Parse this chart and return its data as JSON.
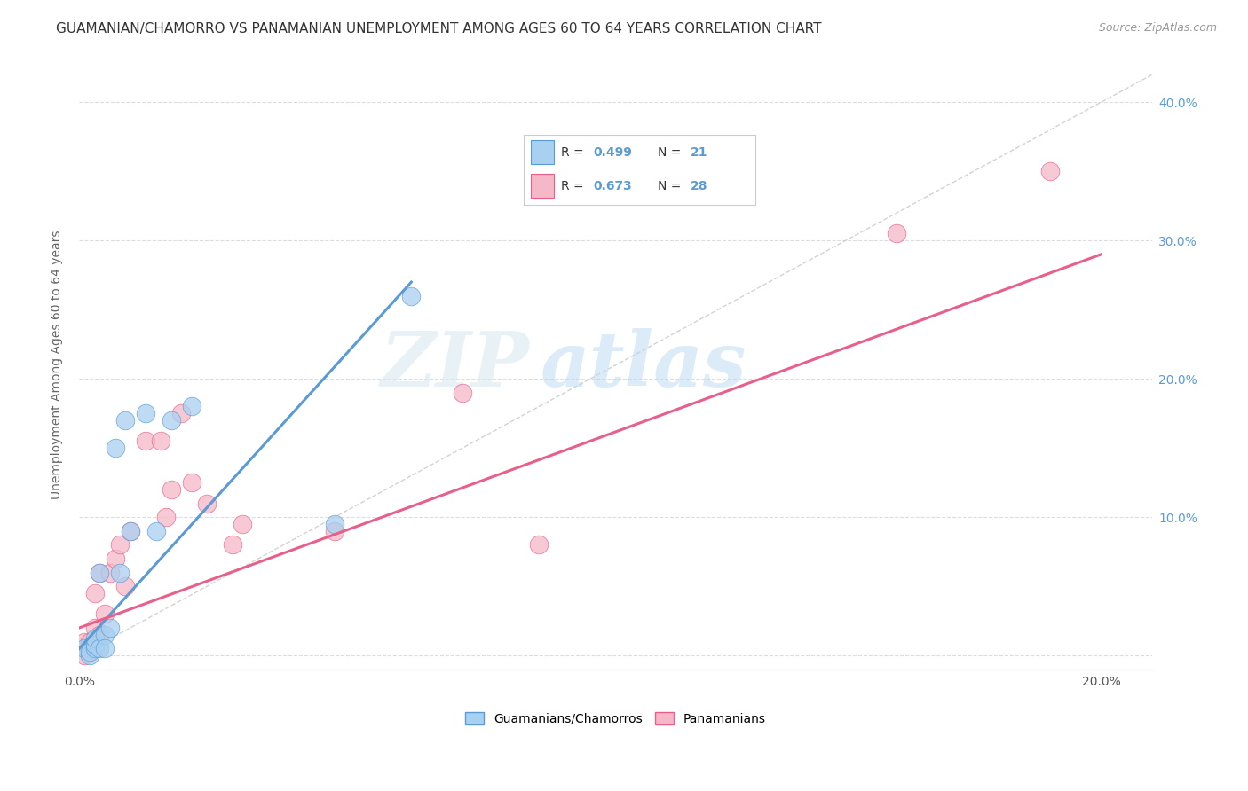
{
  "title": "GUAMANIAN/CHAMORRO VS PANAMANIAN UNEMPLOYMENT AMONG AGES 60 TO 64 YEARS CORRELATION CHART",
  "source": "Source: ZipAtlas.com",
  "ylabel": "Unemployment Among Ages 60 to 64 years",
  "xlim": [
    0.0,
    0.21
  ],
  "ylim": [
    -0.01,
    0.43
  ],
  "x_ticks": [
    0.0,
    0.05,
    0.1,
    0.15,
    0.2
  ],
  "x_tick_labels": [
    "0.0%",
    "",
    "",
    "",
    "20.0%"
  ],
  "y_ticks": [
    0.0,
    0.1,
    0.2,
    0.3,
    0.4
  ],
  "y_tick_labels_right": [
    "",
    "10.0%",
    "20.0%",
    "30.0%",
    "40.0%"
  ],
  "guamanian_R": 0.499,
  "guamanian_N": 21,
  "panamanian_R": 0.673,
  "panamanian_N": 28,
  "guamanian_color": "#a8d0f0",
  "panamanian_color": "#f5b8c8",
  "guamanian_line_color": "#5b9bd5",
  "panamanian_line_color": "#e8608a",
  "diagonal_color": "#c8c8c8",
  "legend_label_1": "Guamanians/Chamorros",
  "legend_label_2": "Panamanians",
  "watermark_zip": "ZIP",
  "watermark_atlas": "atlas",
  "guamanian_x": [
    0.001,
    0.002,
    0.002,
    0.003,
    0.003,
    0.003,
    0.004,
    0.004,
    0.005,
    0.005,
    0.006,
    0.007,
    0.008,
    0.009,
    0.01,
    0.013,
    0.015,
    0.018,
    0.022,
    0.05,
    0.065
  ],
  "guamanian_y": [
    0.005,
    0.0,
    0.003,
    0.005,
    0.008,
    0.012,
    0.005,
    0.06,
    0.015,
    0.005,
    0.02,
    0.15,
    0.06,
    0.17,
    0.09,
    0.175,
    0.09,
    0.17,
    0.18,
    0.095,
    0.26
  ],
  "panamanian_x": [
    0.001,
    0.001,
    0.002,
    0.002,
    0.003,
    0.003,
    0.004,
    0.004,
    0.005,
    0.006,
    0.007,
    0.008,
    0.009,
    0.01,
    0.013,
    0.016,
    0.017,
    0.018,
    0.02,
    0.022,
    0.025,
    0.03,
    0.032,
    0.05,
    0.075,
    0.09,
    0.16,
    0.19
  ],
  "panamanian_y": [
    0.0,
    0.01,
    0.01,
    0.005,
    0.02,
    0.045,
    0.015,
    0.06,
    0.03,
    0.06,
    0.07,
    0.08,
    0.05,
    0.09,
    0.155,
    0.155,
    0.1,
    0.12,
    0.175,
    0.125,
    0.11,
    0.08,
    0.095,
    0.09,
    0.19,
    0.08,
    0.305,
    0.35
  ],
  "blue_line_x": [
    0.0,
    0.065
  ],
  "blue_line_y": [
    0.005,
    0.27
  ],
  "pink_line_x": [
    0.0,
    0.2
  ],
  "pink_line_y": [
    0.02,
    0.29
  ],
  "background_color": "#ffffff",
  "grid_color": "#dddddd",
  "title_fontsize": 11,
  "axis_fontsize": 10,
  "tick_fontsize": 10,
  "source_fontsize": 9
}
